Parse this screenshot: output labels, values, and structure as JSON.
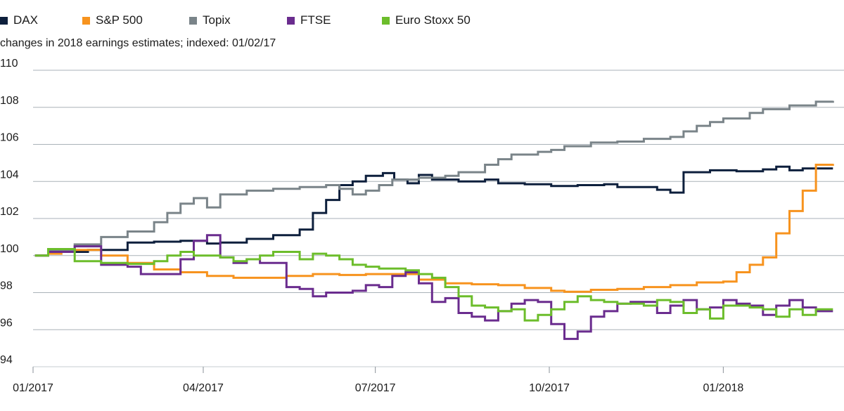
{
  "legend": [
    {
      "name": "DAX",
      "color": "#0d1f3c"
    },
    {
      "name": "S&P 500",
      "color": "#f7931e"
    },
    {
      "name": "Topix",
      "color": "#7a8489"
    },
    {
      "name": "FTSE",
      "color": "#6a2c8e"
    },
    {
      "name": "Euro Stoxx 50",
      "color": "#6cbd2b"
    }
  ],
  "chart_data": {
    "type": "line",
    "title": "",
    "subtitle": "changes in 2018 earnings estimates; indexed: 01/02/17",
    "xlabel": "",
    "ylabel": "",
    "x_axis": {
      "type": "date",
      "range": [
        "2017-01-02",
        "2018-02-28"
      ],
      "ticks": [
        {
          "date": "2017-01-01",
          "label": "01/2017"
        },
        {
          "date": "2017-04-01",
          "label": "04/2017"
        },
        {
          "date": "2017-07-01",
          "label": "07/2017"
        },
        {
          "date": "2017-10-01",
          "label": "10/2017"
        },
        {
          "date": "2018-01-01",
          "label": "01/2018"
        }
      ]
    },
    "ylim": [
      94,
      110
    ],
    "yticks": [
      94,
      96,
      98,
      100,
      102,
      104,
      106,
      108,
      110
    ],
    "grid": "horizontal",
    "legend_position": "top-left",
    "line_style": "step",
    "series": [
      {
        "name": "DAX",
        "color": "#0d1f3c",
        "points": [
          [
            "2017-01-02",
            100.0
          ],
          [
            "2017-01-09",
            100.2
          ],
          [
            "2017-01-30",
            100.3
          ],
          [
            "2017-02-20",
            100.7
          ],
          [
            "2017-03-06",
            100.75
          ],
          [
            "2017-03-20",
            100.8
          ],
          [
            "2017-04-03",
            100.65
          ],
          [
            "2017-04-10",
            100.7
          ],
          [
            "2017-04-24",
            100.9
          ],
          [
            "2017-05-08",
            101.1
          ],
          [
            "2017-05-22",
            101.4
          ],
          [
            "2017-05-29",
            102.3
          ],
          [
            "2017-06-05",
            103.0
          ],
          [
            "2017-06-12",
            103.8
          ],
          [
            "2017-06-19",
            104.0
          ],
          [
            "2017-06-26",
            104.3
          ],
          [
            "2017-07-05",
            104.45
          ],
          [
            "2017-07-11",
            104.1
          ],
          [
            "2017-07-18",
            103.9
          ],
          [
            "2017-07-24",
            104.35
          ],
          [
            "2017-07-31",
            104.1
          ],
          [
            "2017-08-14",
            104.0
          ],
          [
            "2017-08-28",
            104.1
          ],
          [
            "2017-09-04",
            103.9
          ],
          [
            "2017-09-18",
            103.85
          ],
          [
            "2017-10-02",
            103.75
          ],
          [
            "2017-10-16",
            103.8
          ],
          [
            "2017-10-30",
            103.85
          ],
          [
            "2017-11-06",
            103.7
          ],
          [
            "2017-11-27",
            103.55
          ],
          [
            "2017-12-04",
            103.4
          ],
          [
            "2017-12-11",
            104.5
          ],
          [
            "2017-12-25",
            104.6
          ],
          [
            "2018-01-08",
            104.55
          ],
          [
            "2018-01-22",
            104.65
          ],
          [
            "2018-01-29",
            104.8
          ],
          [
            "2018-02-05",
            104.6
          ],
          [
            "2018-02-12",
            104.7
          ],
          [
            "2018-02-28",
            104.7
          ]
        ]
      },
      {
        "name": "S&P 500",
        "color": "#f7931e",
        "points": [
          [
            "2017-01-02",
            100.0
          ],
          [
            "2017-01-09",
            100.1
          ],
          [
            "2017-01-16",
            100.2
          ],
          [
            "2017-01-23",
            100.3
          ],
          [
            "2017-02-06",
            100.0
          ],
          [
            "2017-02-20",
            99.6
          ],
          [
            "2017-03-06",
            99.25
          ],
          [
            "2017-03-20",
            99.1
          ],
          [
            "2017-04-03",
            98.9
          ],
          [
            "2017-04-17",
            98.8
          ],
          [
            "2017-05-01",
            98.8
          ],
          [
            "2017-05-15",
            98.9
          ],
          [
            "2017-05-29",
            99.0
          ],
          [
            "2017-06-12",
            98.95
          ],
          [
            "2017-06-26",
            99.0
          ],
          [
            "2017-07-10",
            99.0
          ],
          [
            "2017-07-24",
            98.7
          ],
          [
            "2017-08-07",
            98.5
          ],
          [
            "2017-08-21",
            98.45
          ],
          [
            "2017-09-04",
            98.4
          ],
          [
            "2017-09-18",
            98.25
          ],
          [
            "2017-10-02",
            98.1
          ],
          [
            "2017-10-09",
            98.05
          ],
          [
            "2017-10-23",
            98.15
          ],
          [
            "2017-11-06",
            98.2
          ],
          [
            "2017-11-20",
            98.3
          ],
          [
            "2017-12-04",
            98.4
          ],
          [
            "2017-12-18",
            98.55
          ],
          [
            "2018-01-01",
            98.6
          ],
          [
            "2018-01-08",
            99.1
          ],
          [
            "2018-01-15",
            99.5
          ],
          [
            "2018-01-22",
            99.9
          ],
          [
            "2018-01-29",
            101.2
          ],
          [
            "2018-02-05",
            102.4
          ],
          [
            "2018-02-12",
            103.5
          ],
          [
            "2018-02-19",
            104.9
          ],
          [
            "2018-02-28",
            104.95
          ]
        ]
      },
      {
        "name": "Topix",
        "color": "#7a8489",
        "points": [
          [
            "2017-01-02",
            100.0
          ],
          [
            "2017-01-09",
            100.3
          ],
          [
            "2017-01-23",
            100.6
          ],
          [
            "2017-02-06",
            101.0
          ],
          [
            "2017-02-20",
            101.3
          ],
          [
            "2017-03-06",
            101.8
          ],
          [
            "2017-03-13",
            102.3
          ],
          [
            "2017-03-20",
            102.8
          ],
          [
            "2017-03-27",
            103.1
          ],
          [
            "2017-04-03",
            102.6
          ],
          [
            "2017-04-10",
            103.3
          ],
          [
            "2017-04-24",
            103.5
          ],
          [
            "2017-05-08",
            103.6
          ],
          [
            "2017-05-22",
            103.7
          ],
          [
            "2017-06-05",
            103.8
          ],
          [
            "2017-06-12",
            103.6
          ],
          [
            "2017-06-19",
            103.3
          ],
          [
            "2017-06-26",
            103.5
          ],
          [
            "2017-07-03",
            103.8
          ],
          [
            "2017-07-10",
            104.1
          ],
          [
            "2017-07-24",
            104.2
          ],
          [
            "2017-08-07",
            104.3
          ],
          [
            "2017-08-14",
            104.5
          ],
          [
            "2017-08-28",
            104.9
          ],
          [
            "2017-09-04",
            105.2
          ],
          [
            "2017-09-11",
            105.45
          ],
          [
            "2017-09-25",
            105.6
          ],
          [
            "2017-10-02",
            105.7
          ],
          [
            "2017-10-09",
            105.9
          ],
          [
            "2017-10-23",
            106.1
          ],
          [
            "2017-11-06",
            106.15
          ],
          [
            "2017-11-20",
            106.3
          ],
          [
            "2017-12-04",
            106.4
          ],
          [
            "2017-12-11",
            106.7
          ],
          [
            "2017-12-18",
            107.0
          ],
          [
            "2017-12-25",
            107.2
          ],
          [
            "2018-01-01",
            107.4
          ],
          [
            "2018-01-15",
            107.7
          ],
          [
            "2018-01-22",
            107.9
          ],
          [
            "2018-02-05",
            108.1
          ],
          [
            "2018-02-19",
            108.3
          ],
          [
            "2018-02-28",
            108.35
          ]
        ]
      },
      {
        "name": "FTSE",
        "color": "#6a2c8e",
        "points": [
          [
            "2017-01-02",
            100.0
          ],
          [
            "2017-01-09",
            100.2
          ],
          [
            "2017-01-23",
            100.5
          ],
          [
            "2017-02-06",
            99.5
          ],
          [
            "2017-02-20",
            99.4
          ],
          [
            "2017-02-27",
            99.0
          ],
          [
            "2017-03-13",
            99.0
          ],
          [
            "2017-03-20",
            99.8
          ],
          [
            "2017-03-27",
            100.8
          ],
          [
            "2017-04-03",
            101.1
          ],
          [
            "2017-04-10",
            99.9
          ],
          [
            "2017-04-17",
            99.6
          ],
          [
            "2017-04-24",
            99.8
          ],
          [
            "2017-05-01",
            99.6
          ],
          [
            "2017-05-15",
            98.3
          ],
          [
            "2017-05-22",
            98.2
          ],
          [
            "2017-05-29",
            97.8
          ],
          [
            "2017-06-05",
            98.0
          ],
          [
            "2017-06-19",
            98.1
          ],
          [
            "2017-06-26",
            98.4
          ],
          [
            "2017-07-03",
            98.3
          ],
          [
            "2017-07-10",
            98.9
          ],
          [
            "2017-07-17",
            99.1
          ],
          [
            "2017-07-24",
            98.5
          ],
          [
            "2017-07-31",
            97.5
          ],
          [
            "2017-08-07",
            97.7
          ],
          [
            "2017-08-14",
            96.9
          ],
          [
            "2017-08-21",
            96.7
          ],
          [
            "2017-08-28",
            96.5
          ],
          [
            "2017-09-04",
            97.0
          ],
          [
            "2017-09-11",
            97.4
          ],
          [
            "2017-09-18",
            97.6
          ],
          [
            "2017-09-25",
            97.5
          ],
          [
            "2017-10-02",
            96.3
          ],
          [
            "2017-10-09",
            95.5
          ],
          [
            "2017-10-16",
            95.9
          ],
          [
            "2017-10-23",
            96.7
          ],
          [
            "2017-10-30",
            97.0
          ],
          [
            "2017-11-06",
            97.4
          ],
          [
            "2017-11-13",
            97.5
          ],
          [
            "2017-11-27",
            96.9
          ],
          [
            "2017-12-04",
            97.3
          ],
          [
            "2017-12-11",
            97.6
          ],
          [
            "2017-12-18",
            97.1
          ],
          [
            "2017-12-25",
            97.2
          ],
          [
            "2018-01-01",
            97.6
          ],
          [
            "2018-01-08",
            97.4
          ],
          [
            "2018-01-15",
            97.3
          ],
          [
            "2018-01-22",
            96.8
          ],
          [
            "2018-01-29",
            97.3
          ],
          [
            "2018-02-05",
            97.6
          ],
          [
            "2018-02-12",
            97.2
          ],
          [
            "2018-02-19",
            97.0
          ],
          [
            "2018-02-28",
            97.0
          ]
        ]
      },
      {
        "name": "Euro Stoxx 50",
        "color": "#6cbd2b",
        "points": [
          [
            "2017-01-02",
            100.0
          ],
          [
            "2017-01-09",
            100.35
          ],
          [
            "2017-01-23",
            99.7
          ],
          [
            "2017-02-06",
            99.6
          ],
          [
            "2017-02-20",
            99.55
          ],
          [
            "2017-03-06",
            99.7
          ],
          [
            "2017-03-13",
            100.0
          ],
          [
            "2017-03-20",
            100.2
          ],
          [
            "2017-03-27",
            100.0
          ],
          [
            "2017-04-10",
            99.9
          ],
          [
            "2017-04-17",
            99.7
          ],
          [
            "2017-04-24",
            99.8
          ],
          [
            "2017-05-01",
            100.0
          ],
          [
            "2017-05-08",
            100.2
          ],
          [
            "2017-05-22",
            99.8
          ],
          [
            "2017-05-29",
            100.1
          ],
          [
            "2017-06-05",
            100.0
          ],
          [
            "2017-06-12",
            99.8
          ],
          [
            "2017-06-19",
            99.5
          ],
          [
            "2017-06-26",
            99.4
          ],
          [
            "2017-07-03",
            99.3
          ],
          [
            "2017-07-17",
            99.2
          ],
          [
            "2017-07-24",
            99.0
          ],
          [
            "2017-07-31",
            98.8
          ],
          [
            "2017-08-07",
            98.3
          ],
          [
            "2017-08-14",
            97.8
          ],
          [
            "2017-08-21",
            97.3
          ],
          [
            "2017-08-28",
            97.2
          ],
          [
            "2017-09-04",
            97.0
          ],
          [
            "2017-09-11",
            97.1
          ],
          [
            "2017-09-18",
            96.5
          ],
          [
            "2017-09-25",
            96.8
          ],
          [
            "2017-10-02",
            97.1
          ],
          [
            "2017-10-09",
            97.5
          ],
          [
            "2017-10-16",
            97.8
          ],
          [
            "2017-10-23",
            97.6
          ],
          [
            "2017-10-30",
            97.5
          ],
          [
            "2017-11-06",
            97.4
          ],
          [
            "2017-11-20",
            97.3
          ],
          [
            "2017-11-27",
            97.6
          ],
          [
            "2017-12-04",
            97.5
          ],
          [
            "2017-12-11",
            96.9
          ],
          [
            "2017-12-18",
            97.1
          ],
          [
            "2017-12-25",
            96.6
          ],
          [
            "2018-01-01",
            97.3
          ],
          [
            "2018-01-15",
            97.2
          ],
          [
            "2018-01-22",
            97.1
          ],
          [
            "2018-01-29",
            96.7
          ],
          [
            "2018-02-05",
            97.1
          ],
          [
            "2018-02-12",
            96.8
          ],
          [
            "2018-02-19",
            97.1
          ],
          [
            "2018-02-28",
            97.1
          ]
        ]
      }
    ]
  }
}
